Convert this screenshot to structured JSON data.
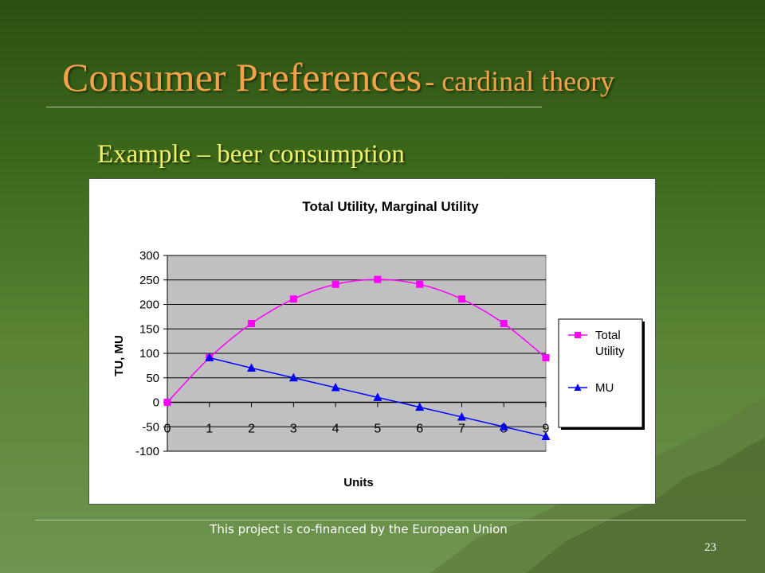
{
  "slide": {
    "title_main": "Consumer Preferences",
    "title_sub": "- cardinal theory",
    "subtitle": "Example – beer consumption",
    "footer": "This project is co-financed by the European Union",
    "page_number": "23"
  },
  "colors": {
    "title": "#f4a24a",
    "subtitle": "#f2f06a",
    "plot_bg": "#c0c0c0",
    "total_utility": "#ff00ff",
    "mu": "#0000ff"
  },
  "chart_data": {
    "type": "line",
    "title": "Total Utility, Marginal Utility",
    "xlabel": "Units",
    "ylabel": "TU, MU",
    "x": [
      0,
      1,
      2,
      3,
      4,
      5,
      6,
      7,
      8,
      9
    ],
    "xticks": [
      "0",
      "1",
      "2",
      "3",
      "4",
      "5",
      "6",
      "7",
      "8",
      "9"
    ],
    "yticks": [
      "300",
      "250",
      "200",
      "150",
      "100",
      "50",
      "0",
      "-50",
      "-100"
    ],
    "ylim": [
      -100,
      300
    ],
    "grid": true,
    "legend_position": "right",
    "series": [
      {
        "name": "Total Utility",
        "marker": "square",
        "x": [
          0,
          1,
          2,
          3,
          4,
          5,
          6,
          7,
          8,
          9
        ],
        "values": [
          0,
          91,
          161,
          211,
          241,
          251,
          241,
          211,
          161,
          91
        ]
      },
      {
        "name": "MU",
        "marker": "triangle",
        "x": [
          1,
          2,
          3,
          4,
          5,
          6,
          7,
          8,
          9
        ],
        "values": [
          91,
          70,
          50,
          30,
          10,
          -10,
          -30,
          -50,
          -70
        ]
      }
    ]
  }
}
